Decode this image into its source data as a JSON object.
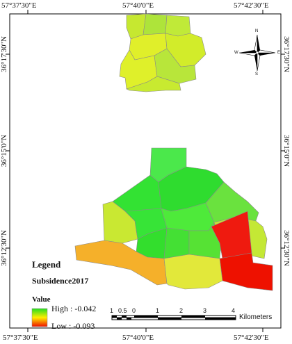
{
  "coordinates": {
    "top": [
      "57°37'30\"E",
      "57°40'0\"E",
      "57°42'30\"E"
    ],
    "bottom": [
      "57°37'30\"E",
      "57°40'0\"E",
      "57°42'30\"E"
    ],
    "left": [
      "36°17'30\"N",
      "36°15'0\"N",
      "36°12'30\"N"
    ],
    "right": [
      "36°17'30\"N",
      "36°15'0\"N",
      "36°12'30\"N"
    ]
  },
  "legend": {
    "title": "Legend",
    "layer": "Subsidence2017",
    "value_label": "Value",
    "high": "High : -0.042",
    "low": "Low : -0.093",
    "colors": {
      "high": "#22dd22",
      "mid": "#ffee00",
      "low": "#ee1100"
    }
  },
  "scale_bar": {
    "ticks": [
      "1",
      "0.5",
      "0",
      "1",
      "2",
      "3",
      "4"
    ],
    "unit": "Kilometers"
  },
  "north_arrow": {
    "n": "N",
    "s": "S",
    "e": "E",
    "w": "W"
  }
}
